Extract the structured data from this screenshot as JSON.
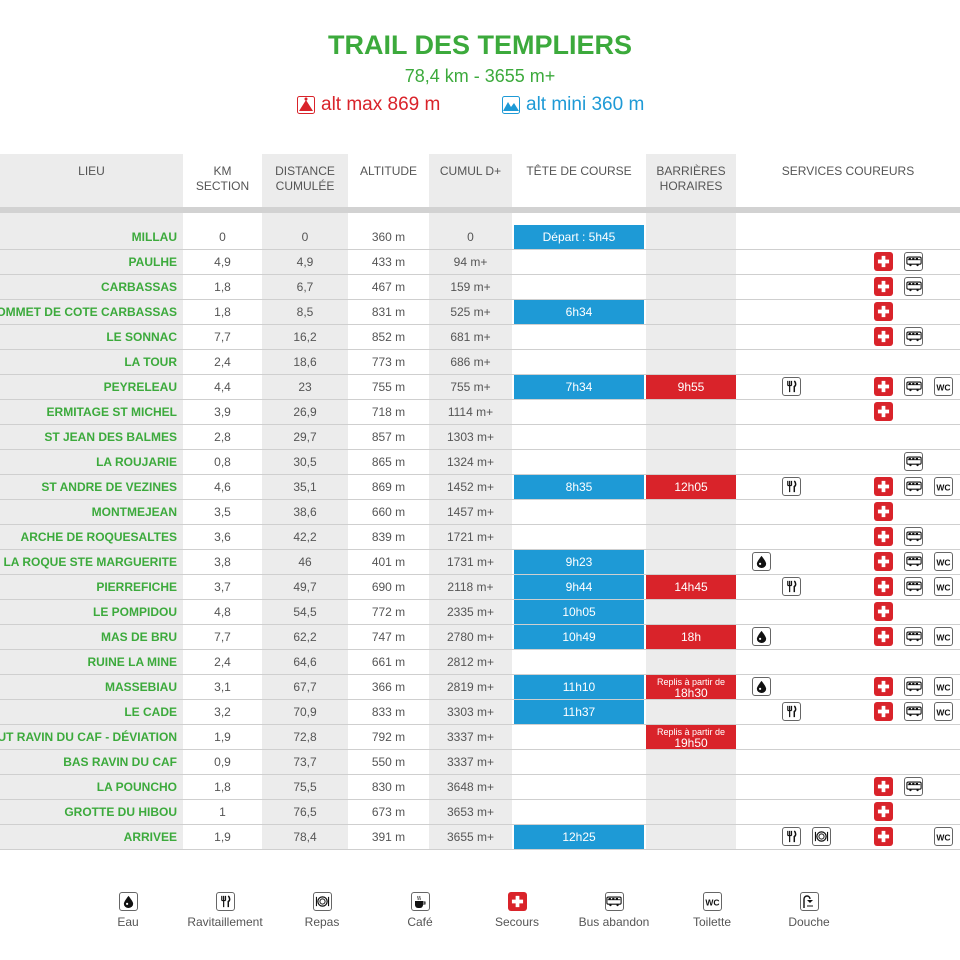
{
  "header": {
    "title": "TRAIL DES TEMPLIERS",
    "subtitle": "78,4 km - 3655 m+",
    "alt_max": "alt max 869 m",
    "alt_min": "alt mini 360 m"
  },
  "colors": {
    "green": "#3caa3c",
    "red": "#d9232a",
    "blue": "#1e9ad6",
    "gray": "#ececec"
  },
  "columns": {
    "lieu": "LIEU",
    "km_section": "KM\nSECTION",
    "distance": "DISTANCE\nCUMULÉE",
    "altitude": "ALTITUDE",
    "cumul": "CUMUL D+",
    "tete": "TÊTE DE COURSE",
    "barrieres": "BARRIÈRES\nHORAIRES",
    "services": "SERVICES COUREURS"
  },
  "rows": [
    {
      "lieu": "MILLAU",
      "km": "0",
      "dist": "0",
      "alt": "360 m",
      "cumul": "0",
      "tete": "Départ : 5h45",
      "barr": "",
      "services": []
    },
    {
      "lieu": "PAULHE",
      "km": "4,9",
      "dist": "4,9",
      "alt": "433 m",
      "cumul": "94 m+",
      "tete": "",
      "barr": "",
      "services": [
        "secours",
        "bus"
      ]
    },
    {
      "lieu": "CARBASSAS",
      "km": "1,8",
      "dist": "6,7",
      "alt": "467 m",
      "cumul": "159 m+",
      "tete": "",
      "barr": "",
      "services": [
        "secours",
        "bus"
      ]
    },
    {
      "lieu": "SOMMET DE COTE CARBASSAS",
      "km": "1,8",
      "dist": "8,5",
      "alt": "831 m",
      "cumul": "525 m+",
      "tete": "6h34",
      "barr": "",
      "services": [
        "secours"
      ]
    },
    {
      "lieu": "LE SONNAC",
      "km": "7,7",
      "dist": "16,2",
      "alt": "852 m",
      "cumul": "681 m+",
      "tete": "",
      "barr": "",
      "services": [
        "secours",
        "bus"
      ]
    },
    {
      "lieu": "LA TOUR",
      "km": "2,4",
      "dist": "18,6",
      "alt": "773 m",
      "cumul": "686 m+",
      "tete": "",
      "barr": "",
      "services": []
    },
    {
      "lieu": "PEYRELEAU",
      "km": "4,4",
      "dist": "23",
      "alt": "755 m",
      "cumul": "755 m+",
      "tete": "7h34",
      "barr": "9h55",
      "services": [
        "ravito",
        "secours",
        "bus",
        "wc"
      ]
    },
    {
      "lieu": "ERMITAGE ST MICHEL",
      "km": "3,9",
      "dist": "26,9",
      "alt": "718 m",
      "cumul": "1114 m+",
      "tete": "",
      "barr": "",
      "services": [
        "secours"
      ]
    },
    {
      "lieu": "ST JEAN DES BALMES",
      "km": "2,8",
      "dist": "29,7",
      "alt": "857 m",
      "cumul": "1303 m+",
      "tete": "",
      "barr": "",
      "services": []
    },
    {
      "lieu": "LA ROUJARIE",
      "km": "0,8",
      "dist": "30,5",
      "alt": "865 m",
      "cumul": "1324 m+",
      "tete": "",
      "barr": "",
      "services": [
        "bus"
      ]
    },
    {
      "lieu": "ST ANDRE DE VEZINES",
      "km": "4,6",
      "dist": "35,1",
      "alt": "869 m",
      "cumul": "1452 m+",
      "tete": "8h35",
      "barr": "12h05",
      "services": [
        "ravito",
        "secours",
        "bus",
        "wc"
      ]
    },
    {
      "lieu": "MONTMEJEAN",
      "km": "3,5",
      "dist": "38,6",
      "alt": "660 m",
      "cumul": "1457 m+",
      "tete": "",
      "barr": "",
      "services": [
        "secours"
      ]
    },
    {
      "lieu": "ARCHE DE ROQUESALTES",
      "km": "3,6",
      "dist": "42,2",
      "alt": "839 m",
      "cumul": "1721 m+",
      "tete": "",
      "barr": "",
      "services": [
        "secours",
        "bus"
      ]
    },
    {
      "lieu": "LA ROQUE STE MARGUERITE",
      "km": "3,8",
      "dist": "46",
      "alt": "401 m",
      "cumul": "1731 m+",
      "tete": "9h23",
      "barr": "",
      "services": [
        "eau",
        "secours",
        "bus",
        "wc"
      ]
    },
    {
      "lieu": "PIERREFICHE",
      "km": "3,7",
      "dist": "49,7",
      "alt": "690 m",
      "cumul": "2118 m+",
      "tete": "9h44",
      "barr": "14h45",
      "services": [
        "ravito",
        "secours",
        "bus",
        "wc"
      ]
    },
    {
      "lieu": "LE POMPIDOU",
      "km": "4,8",
      "dist": "54,5",
      "alt": "772 m",
      "cumul": "2335 m+",
      "tete": "10h05",
      "barr": "",
      "services": [
        "secours"
      ]
    },
    {
      "lieu": "MAS DE BRU",
      "km": "7,7",
      "dist": "62,2",
      "alt": "747 m",
      "cumul": "2780 m+",
      "tete": "10h49",
      "barr": "18h",
      "services": [
        "eau",
        "secours",
        "bus",
        "wc"
      ]
    },
    {
      "lieu": "RUINE LA MINE",
      "km": "2,4",
      "dist": "64,6",
      "alt": "661 m",
      "cumul": "2812 m+",
      "tete": "",
      "barr": "",
      "services": []
    },
    {
      "lieu": "MASSEBIAU",
      "km": "3,1",
      "dist": "67,7",
      "alt": "366 m",
      "cumul": "2819 m+",
      "tete": "11h10",
      "barr_small": "Replis à partir de",
      "barr": "18h30",
      "services": [
        "eau",
        "secours",
        "bus",
        "wc"
      ]
    },
    {
      "lieu": "LE CADE",
      "km": "3,2",
      "dist": "70,9",
      "alt": "833 m",
      "cumul": "3303 m+",
      "tete": "11h37",
      "barr": "",
      "services": [
        "ravito",
        "secours",
        "bus",
        "wc"
      ]
    },
    {
      "lieu": "HAUT RAVIN DU CAF - DÉVIATION",
      "km": "1,9",
      "dist": "72,8",
      "alt": "792 m",
      "cumul": "3337 m+",
      "tete": "",
      "barr_small": "Replis à partir de",
      "barr": "19h50",
      "services": []
    },
    {
      "lieu": "BAS RAVIN DU CAF",
      "km": "0,9",
      "dist": "73,7",
      "alt": "550 m",
      "cumul": "3337 m+",
      "tete": "",
      "barr": "",
      "services": []
    },
    {
      "lieu": "LA POUNCHO",
      "km": "1,8",
      "dist": "75,5",
      "alt": "830 m",
      "cumul": "3648 m+",
      "tete": "",
      "barr": "",
      "services": [
        "secours",
        "bus"
      ]
    },
    {
      "lieu": "GROTTE DU HIBOU",
      "km": "1",
      "dist": "76,5",
      "alt": "673 m",
      "cumul": "3653 m+",
      "tete": "",
      "barr": "",
      "services": [
        "secours"
      ]
    },
    {
      "lieu": "ARRIVEE",
      "km": "1,9",
      "dist": "78,4",
      "alt": "391 m",
      "cumul": "3655 m+",
      "tete": "12h25",
      "barr": "",
      "services": [
        "ravito",
        "repas",
        "secours",
        "wc"
      ]
    }
  ],
  "legend": [
    {
      "key": "eau",
      "label": "Eau"
    },
    {
      "key": "ravito",
      "label": "Ravitaillement"
    },
    {
      "key": "repas",
      "label": "Repas"
    },
    {
      "key": "cafe",
      "label": "Café"
    },
    {
      "key": "secours",
      "label": "Secours"
    },
    {
      "key": "bus",
      "label": "Bus abandon"
    },
    {
      "key": "wc",
      "label": "Toilette"
    },
    {
      "key": "douche",
      "label": "Douche"
    }
  ],
  "icons": {
    "eau": "water-drop-icon",
    "ravito": "fork-knife-icon",
    "repas": "plate-icon",
    "cafe": "coffee-cup-icon",
    "secours": "red-cross-icon",
    "bus": "bus-icon",
    "wc": "wc-icon",
    "douche": "shower-icon",
    "alt_max": "mountain-peak-icon",
    "alt_min": "valley-icon"
  },
  "wc_text": "WC"
}
